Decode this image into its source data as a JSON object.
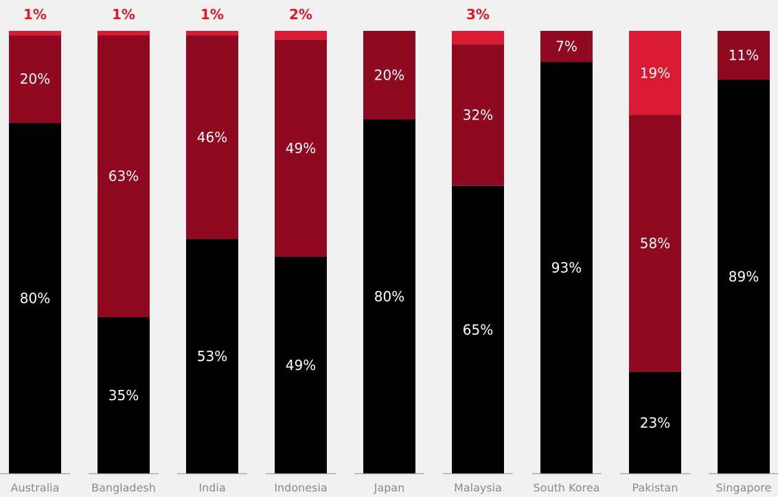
{
  "chart_data": {
    "type": "bar",
    "stacked": true,
    "categories": [
      "Australia",
      "Bangladesh",
      "India",
      "Indonesia",
      "Japan",
      "Malaysia",
      "South Korea",
      "Pakistan",
      "Singapore"
    ],
    "series": [
      {
        "color": "#000000",
        "values": [
          80,
          35,
          53,
          49,
          80,
          65,
          93,
          23,
          89
        ]
      },
      {
        "color": "#8f0a21",
        "values": [
          20,
          63,
          46,
          49,
          20,
          32,
          7,
          58,
          11
        ]
      },
      {
        "color": "#da1a32",
        "values": [
          1,
          1,
          1,
          2,
          0,
          3,
          0,
          19,
          0
        ]
      }
    ],
    "labels": [
      [
        "80%",
        "35%",
        "53%",
        "49%",
        "80%",
        "65%",
        "93%",
        "23%",
        "89%"
      ],
      [
        "20%",
        "63%",
        "46%",
        "49%",
        "20%",
        "32%",
        "7%",
        "58%",
        "11%"
      ],
      [
        "1%",
        "1%",
        "1%",
        "2%",
        "",
        "3%",
        "",
        "19%",
        ""
      ]
    ],
    "ylim": [
      0,
      100
    ],
    "grid": false,
    "legend": "none"
  }
}
